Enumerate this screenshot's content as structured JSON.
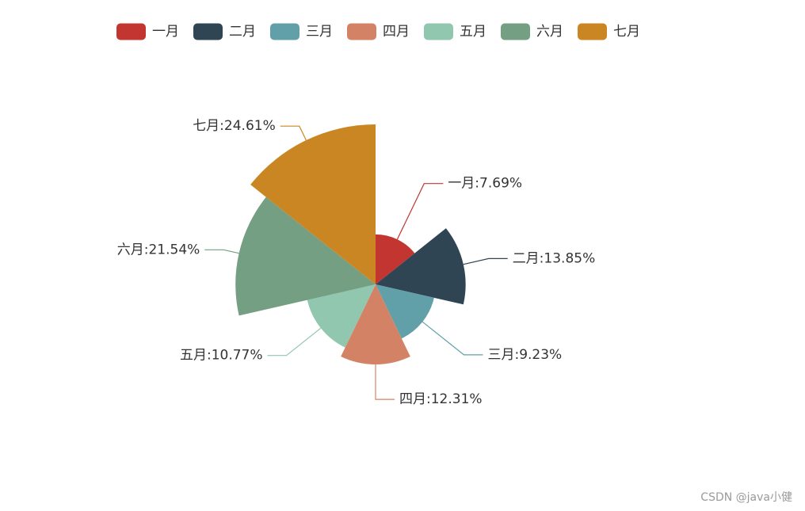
{
  "chart_data": {
    "type": "pie",
    "subtype": "rose",
    "legend_position": "top",
    "categories": [
      "一月",
      "二月",
      "三月",
      "四月",
      "五月",
      "六月",
      "七月"
    ],
    "percentages": [
      7.69,
      13.85,
      9.23,
      12.31,
      10.77,
      21.54,
      24.61
    ],
    "labels": [
      "一月:7.69%",
      "二月:13.85%",
      "三月:9.23%",
      "四月:12.31%",
      "五月:10.77%",
      "六月:21.54%",
      "七月:24.61%"
    ],
    "colors": [
      "#c23531",
      "#2f4554",
      "#61a0a8",
      "#d48265",
      "#91c7ae",
      "#749f83",
      "#ca8622"
    ]
  },
  "watermark": "CSDN @java小健"
}
